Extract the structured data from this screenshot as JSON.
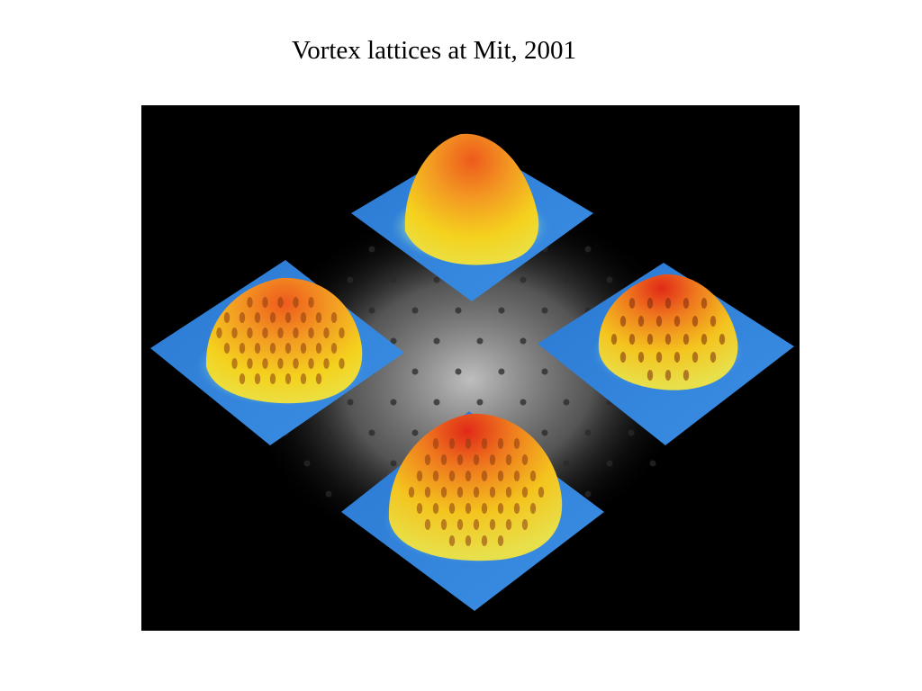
{
  "slide": {
    "title": "Vortex lattices at Mit, 2001"
  },
  "figure": {
    "background_color": "#000000",
    "panels": [
      {
        "id": "top",
        "surface": "smooth-dome"
      },
      {
        "id": "left",
        "surface": "vortex-lattice-dome"
      },
      {
        "id": "right",
        "surface": "vortex-lattice-dome"
      },
      {
        "id": "bottom",
        "surface": "vortex-lattice-dome"
      }
    ],
    "colors": {
      "base_plane": "#2f7fd6",
      "dome_low": "#f2e21a",
      "dome_mid": "#f2a020",
      "dome_high": "#e8321a",
      "lattice_glow": "#d8d8d8"
    }
  }
}
